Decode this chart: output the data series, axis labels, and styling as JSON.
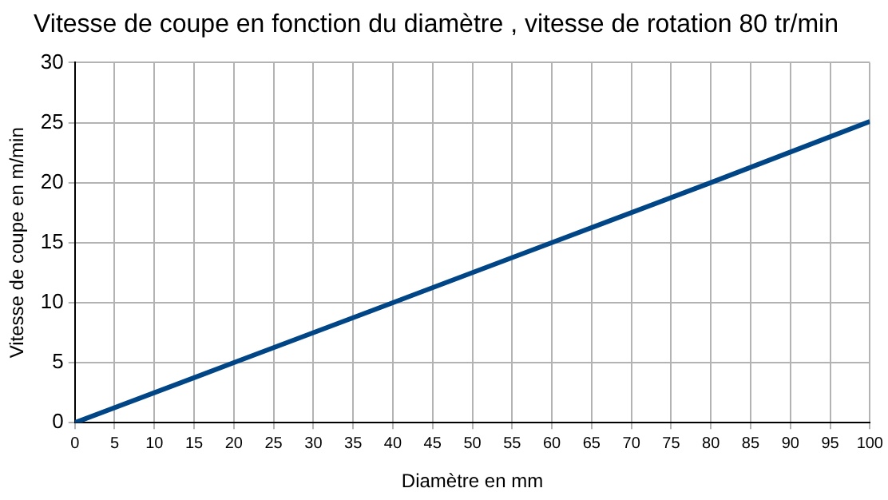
{
  "chart_data": {
    "type": "line",
    "title": "Vitesse de coupe en fonction du diamètre , vitesse de rotation 80 tr/min",
    "xlabel": "Diamètre en mm",
    "ylabel": "Vitesse de coupe en m/min",
    "x": [
      0,
      20,
      40,
      60,
      80,
      100
    ],
    "series": [
      {
        "color": "#004586",
        "values": [
          0,
          5,
          10,
          15,
          20,
          25.1
        ]
      }
    ],
    "xlim": [
      0,
      100
    ],
    "xticks": [
      0,
      5,
      10,
      15,
      20,
      25,
      30,
      35,
      40,
      45,
      50,
      55,
      60,
      65,
      70,
      75,
      80,
      85,
      90,
      95,
      100
    ],
    "ylim": [
      0,
      30
    ],
    "yticks": [
      0,
      5,
      10,
      15,
      20,
      25,
      30
    ],
    "grid": true,
    "legend": false,
    "marker": "none",
    "line_style": "solid"
  }
}
